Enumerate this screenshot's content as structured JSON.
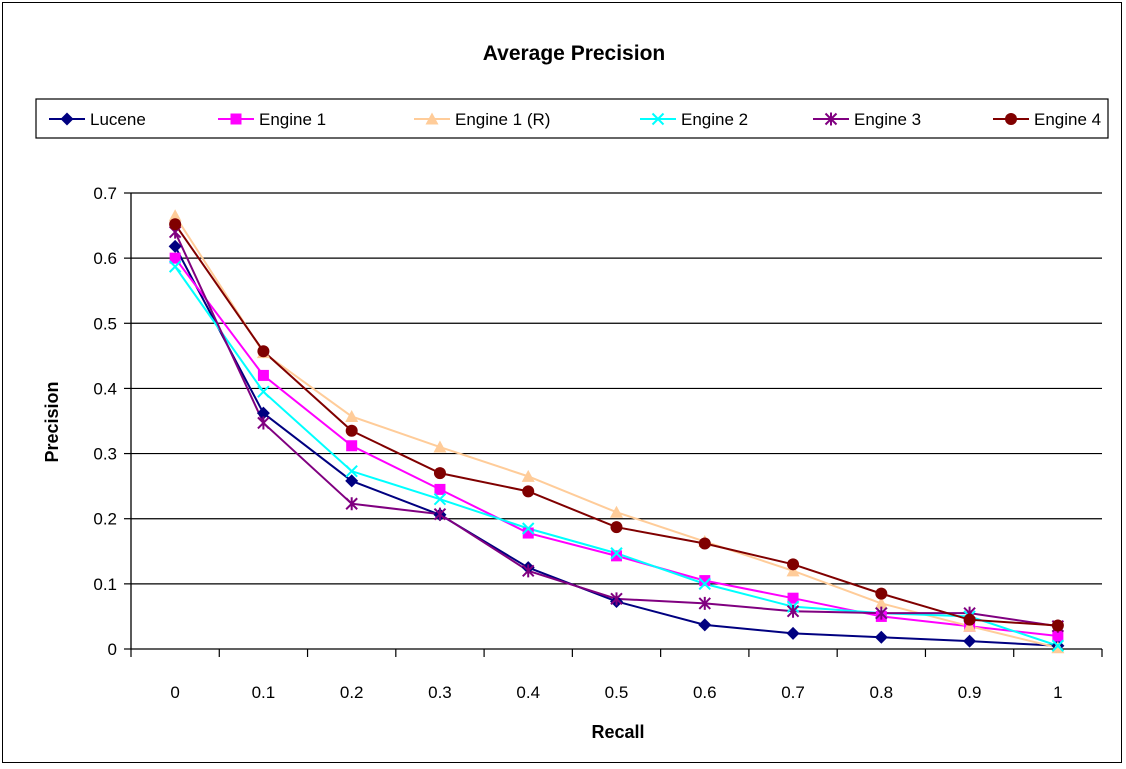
{
  "chart_data": {
    "type": "line",
    "title": "Average Precision",
    "xlabel": "Recall",
    "ylabel": "Precision",
    "categories": [
      "0",
      "0.1",
      "0.2",
      "0.3",
      "0.4",
      "0.5",
      "0.6",
      "0.7",
      "0.8",
      "0.9",
      "1"
    ],
    "ylim": [
      0,
      0.7
    ],
    "yticks": [
      "0",
      "0.1",
      "0.2",
      "0.3",
      "0.4",
      "0.5",
      "0.6",
      "0.7"
    ],
    "grid": "horizontal",
    "legend_position": "top",
    "series": [
      {
        "name": "Lucene",
        "color": "#000080",
        "marker": "diamond",
        "values": [
          0.618,
          0.362,
          0.258,
          0.206,
          0.125,
          0.073,
          0.037,
          0.024,
          0.018,
          0.012,
          0.005
        ]
      },
      {
        "name": "Engine 1",
        "color": "#ff00ff",
        "marker": "square",
        "values": [
          0.6,
          0.42,
          0.312,
          0.245,
          0.178,
          0.143,
          0.105,
          0.078,
          0.05,
          0.035,
          0.02
        ]
      },
      {
        "name": "Engine 1 (R)",
        "color": "#ffcc99",
        "marker": "triangle",
        "values": [
          0.665,
          0.455,
          0.357,
          0.31,
          0.265,
          0.21,
          0.165,
          0.12,
          0.07,
          0.035,
          0.002
        ]
      },
      {
        "name": "Engine 2",
        "color": "#00ffff",
        "marker": "x",
        "values": [
          0.587,
          0.395,
          0.273,
          0.23,
          0.185,
          0.147,
          0.1,
          0.065,
          0.055,
          0.05,
          0.005
        ]
      },
      {
        "name": "Engine 3",
        "color": "#800080",
        "marker": "star",
        "values": [
          0.64,
          0.347,
          0.223,
          0.207,
          0.12,
          0.077,
          0.07,
          0.058,
          0.055,
          0.055,
          0.035
        ]
      },
      {
        "name": "Engine 4",
        "color": "#800000",
        "marker": "circle",
        "values": [
          0.652,
          0.457,
          0.335,
          0.27,
          0.242,
          0.187,
          0.162,
          0.13,
          0.085,
          0.045,
          0.036
        ]
      }
    ]
  }
}
